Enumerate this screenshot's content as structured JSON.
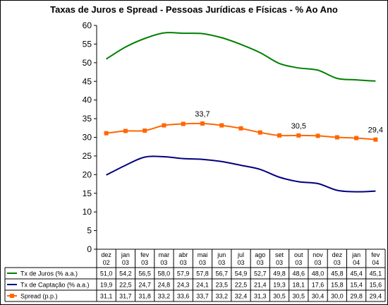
{
  "chart_data": {
    "type": "line",
    "title": "Taxas de Juros e Spread - Pessoas Jurídicas e Físicas - % Ao Ano",
    "ylim": [
      0,
      60
    ],
    "yticks": [
      "0",
      "5",
      "10",
      "15",
      "20",
      "25",
      "30",
      "35",
      "40",
      "45",
      "50",
      "55",
      "60"
    ],
    "grid": false,
    "legend": "data table below chart",
    "categories": [
      [
        "dez",
        "02"
      ],
      [
        "jan",
        "03"
      ],
      [
        "fev",
        "03"
      ],
      [
        "mar",
        "03"
      ],
      [
        "abr",
        "03"
      ],
      [
        "mai",
        "03"
      ],
      [
        "jun",
        "03"
      ],
      [
        "jul",
        "03"
      ],
      [
        "ago",
        "03"
      ],
      [
        "set",
        "03"
      ],
      [
        "out",
        "03"
      ],
      [
        "nov",
        "03"
      ],
      [
        "dez",
        "03"
      ],
      [
        "jan",
        "04"
      ],
      [
        "fev",
        "04"
      ]
    ],
    "series": [
      {
        "name": "Tx de Juros (% a.a.)",
        "color": "#008000",
        "marker": "none",
        "values": [
          51.0,
          54.2,
          56.5,
          58.0,
          57.9,
          57.8,
          56.7,
          54.9,
          52.7,
          49.8,
          48.6,
          48.0,
          45.8,
          45.4,
          45.1
        ],
        "labels": [
          "51,0",
          "54,2",
          "56,5",
          "58,0",
          "57,9",
          "57,8",
          "56,7",
          "54,9",
          "52,7",
          "49,8",
          "48,6",
          "48,0",
          "45,8",
          "45,4",
          "45,1"
        ]
      },
      {
        "name": "Tx de Captação (% a.a.)",
        "color": "#000080",
        "marker": "none",
        "values": [
          19.9,
          22.5,
          24.7,
          24.8,
          24.3,
          24.1,
          23.5,
          22.5,
          21.4,
          19.3,
          18.1,
          17.6,
          15.8,
          15.4,
          15.6
        ],
        "labels": [
          "19,9",
          "22,5",
          "24,7",
          "24,8",
          "24,3",
          "24,1",
          "23,5",
          "22,5",
          "21,4",
          "19,3",
          "18,1",
          "17,6",
          "15,8",
          "15,4",
          "15,6"
        ]
      },
      {
        "name": "Spread (p.p.)",
        "color": "#FF6600",
        "marker": "square",
        "values": [
          31.1,
          31.7,
          31.8,
          33.2,
          33.6,
          33.7,
          33.2,
          32.4,
          31.3,
          30.5,
          30.5,
          30.4,
          30.0,
          29.8,
          29.4
        ],
        "labels": [
          "31,1",
          "31,7",
          "31,8",
          "33,2",
          "33,6",
          "33,7",
          "33,2",
          "32,4",
          "31,3",
          "30,5",
          "30,5",
          "30,4",
          "30,0",
          "29,8",
          "29,4"
        ]
      }
    ],
    "annotations": [
      {
        "series": 2,
        "index": 5,
        "text": "33,7"
      },
      {
        "series": 2,
        "index": 10,
        "text": "30,5"
      },
      {
        "series": 2,
        "index": 14,
        "text": "29,4"
      }
    ]
  }
}
